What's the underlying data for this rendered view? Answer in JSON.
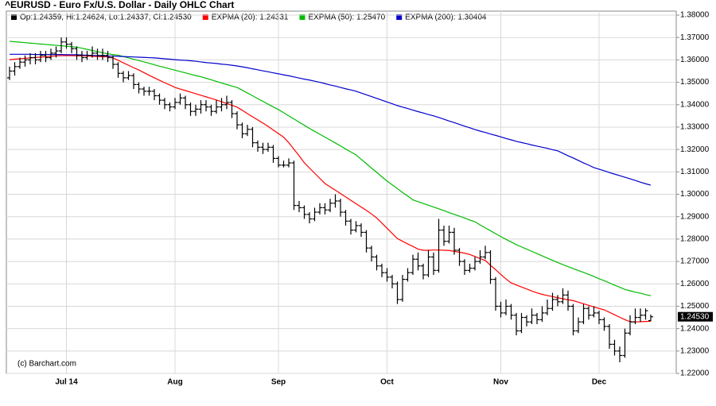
{
  "chart_data": {
    "type": "ohlc",
    "title": "^EURUSD - Euro Fx/U.S. Dollar - Daily OHLC Chart",
    "ohlc_legend": "Op:1.24359, Hi:1.24624, Lo:1.24337, Cl:1.24530",
    "ohlc_color": "#000000",
    "last_value_label": "1.24530",
    "credit": "(c) Barchart.com",
    "ylim": [
      1.22,
      1.38
    ],
    "yticks": [
      {
        "value": 1.22,
        "label": "1.22000"
      },
      {
        "value": 1.23,
        "label": "1.23000"
      },
      {
        "value": 1.24,
        "label": "1.24000"
      },
      {
        "value": 1.25,
        "label": "1.25000"
      },
      {
        "value": 1.26,
        "label": "1.26000"
      },
      {
        "value": 1.27,
        "label": "1.27000"
      },
      {
        "value": 1.28,
        "label": "1.28000"
      },
      {
        "value": 1.29,
        "label": "1.29000"
      },
      {
        "value": 1.3,
        "label": "1.30000"
      },
      {
        "value": 1.31,
        "label": "1.31000"
      },
      {
        "value": 1.32,
        "label": "1.32000"
      },
      {
        "value": 1.33,
        "label": "1.33000"
      },
      {
        "value": 1.34,
        "label": "1.34000"
      },
      {
        "value": 1.35,
        "label": "1.35000"
      },
      {
        "value": 1.36,
        "label": "1.36000"
      },
      {
        "value": 1.37,
        "label": "1.37000"
      },
      {
        "value": 1.38,
        "label": "1.38000"
      }
    ],
    "grid": true,
    "categories": [
      null,
      null,
      null,
      null,
      null,
      null,
      null,
      null,
      null,
      null,
      null,
      "Jul 14",
      null,
      null,
      null,
      null,
      null,
      null,
      null,
      null,
      null,
      null,
      null,
      null,
      null,
      null,
      null,
      null,
      null,
      null,
      null,
      null,
      "Aug",
      null,
      null,
      null,
      null,
      null,
      null,
      null,
      null,
      null,
      null,
      null,
      null,
      null,
      null,
      null,
      null,
      null,
      null,
      null,
      "Sep",
      null,
      null,
      null,
      null,
      null,
      null,
      null,
      null,
      null,
      null,
      null,
      null,
      null,
      null,
      null,
      null,
      null,
      null,
      null,
      null,
      "Oct",
      null,
      null,
      null,
      null,
      null,
      null,
      null,
      null,
      null,
      null,
      null,
      null,
      null,
      null,
      null,
      null,
      null,
      null,
      null,
      null,
      null,
      "Nov",
      null,
      null,
      null,
      null,
      null,
      null,
      null,
      null,
      null,
      null,
      null,
      null,
      null,
      null,
      null,
      null,
      null,
      null,
      "Dec",
      null,
      null,
      null,
      null,
      null,
      null,
      null,
      null,
      null,
      null
    ],
    "ohlc": [
      [
        1.352,
        1.357,
        1.351,
        1.355
      ],
      [
        1.355,
        1.359,
        1.353,
        1.357
      ],
      [
        1.357,
        1.361,
        1.356,
        1.359
      ],
      [
        1.359,
        1.362,
        1.357,
        1.36
      ],
      [
        1.36,
        1.363,
        1.358,
        1.361
      ],
      [
        1.361,
        1.363,
        1.358,
        1.36
      ],
      [
        1.36,
        1.364,
        1.359,
        1.362
      ],
      [
        1.362,
        1.364,
        1.359,
        1.361
      ],
      [
        1.361,
        1.365,
        1.36,
        1.363
      ],
      [
        1.363,
        1.366,
        1.361,
        1.364
      ],
      [
        1.364,
        1.37,
        1.363,
        1.368
      ],
      [
        1.368,
        1.37,
        1.365,
        1.367
      ],
      [
        1.367,
        1.368,
        1.363,
        1.365
      ],
      [
        1.365,
        1.366,
        1.36,
        1.362
      ],
      [
        1.362,
        1.364,
        1.359,
        1.361
      ],
      [
        1.361,
        1.364,
        1.36,
        1.362
      ],
      [
        1.362,
        1.366,
        1.361,
        1.363
      ],
      [
        1.363,
        1.365,
        1.36,
        1.362
      ],
      [
        1.362,
        1.365,
        1.36,
        1.362
      ],
      [
        1.362,
        1.364,
        1.359,
        1.361
      ],
      [
        1.361,
        1.362,
        1.356,
        1.358
      ],
      [
        1.358,
        1.359,
        1.352,
        1.354
      ],
      [
        1.354,
        1.355,
        1.35,
        1.352
      ],
      [
        1.352,
        1.355,
        1.351,
        1.353
      ],
      [
        1.353,
        1.354,
        1.347,
        1.349
      ],
      [
        1.349,
        1.35,
        1.345,
        1.347
      ],
      [
        1.347,
        1.348,
        1.344,
        1.346
      ],
      [
        1.346,
        1.348,
        1.344,
        1.346
      ],
      [
        1.346,
        1.347,
        1.342,
        1.344
      ],
      [
        1.344,
        1.345,
        1.34,
        1.342
      ],
      [
        1.342,
        1.343,
        1.338,
        1.34
      ],
      [
        1.34,
        1.341,
        1.337,
        1.339
      ],
      [
        1.339,
        1.343,
        1.338,
        1.341
      ],
      [
        1.341,
        1.345,
        1.34,
        1.343
      ],
      [
        1.343,
        1.344,
        1.338,
        1.34
      ],
      [
        1.34,
        1.341,
        1.335,
        1.337
      ],
      [
        1.337,
        1.34,
        1.335,
        1.338
      ],
      [
        1.338,
        1.342,
        1.336,
        1.34
      ],
      [
        1.34,
        1.342,
        1.337,
        1.339
      ],
      [
        1.339,
        1.34,
        1.335,
        1.337
      ],
      [
        1.337,
        1.342,
        1.336,
        1.339
      ],
      [
        1.339,
        1.343,
        1.337,
        1.34
      ],
      [
        1.34,
        1.344,
        1.338,
        1.341
      ],
      [
        1.341,
        1.342,
        1.334,
        1.336
      ],
      [
        1.336,
        1.337,
        1.329,
        1.331
      ],
      [
        1.331,
        1.332,
        1.325,
        1.327
      ],
      [
        1.327,
        1.331,
        1.326,
        1.329
      ],
      [
        1.329,
        1.33,
        1.321,
        1.323
      ],
      [
        1.323,
        1.324,
        1.319,
        1.321
      ],
      [
        1.321,
        1.323,
        1.318,
        1.32
      ],
      [
        1.32,
        1.323,
        1.319,
        1.321
      ],
      [
        1.321,
        1.322,
        1.314,
        1.316
      ],
      [
        1.316,
        1.317,
        1.312,
        1.313
      ],
      [
        1.313,
        1.315,
        1.312,
        1.313
      ],
      [
        1.313,
        1.316,
        1.312,
        1.314
      ],
      [
        1.314,
        1.315,
        1.293,
        1.295
      ],
      [
        1.295,
        1.297,
        1.292,
        1.294
      ],
      [
        1.294,
        1.295,
        1.289,
        1.291
      ],
      [
        1.291,
        1.292,
        1.287,
        1.289
      ],
      [
        1.289,
        1.294,
        1.288,
        1.292
      ],
      [
        1.292,
        1.296,
        1.291,
        1.294
      ],
      [
        1.294,
        1.296,
        1.291,
        1.293
      ],
      [
        1.293,
        1.298,
        1.292,
        1.296
      ],
      [
        1.296,
        1.3,
        1.294,
        1.297
      ],
      [
        1.297,
        1.298,
        1.29,
        1.292
      ],
      [
        1.292,
        1.293,
        1.286,
        1.288
      ],
      [
        1.288,
        1.289,
        1.282,
        1.284
      ],
      [
        1.284,
        1.288,
        1.283,
        1.286
      ],
      [
        1.286,
        1.287,
        1.281,
        1.283
      ],
      [
        1.283,
        1.284,
        1.274,
        1.276
      ],
      [
        1.276,
        1.277,
        1.27,
        1.272
      ],
      [
        1.272,
        1.273,
        1.266,
        1.268
      ],
      [
        1.268,
        1.269,
        1.263,
        1.265
      ],
      [
        1.265,
        1.267,
        1.261,
        1.263
      ],
      [
        1.263,
        1.264,
        1.258,
        1.26
      ],
      [
        1.26,
        1.261,
        1.251,
        1.253
      ],
      [
        1.253,
        1.264,
        1.252,
        1.262
      ],
      [
        1.262,
        1.267,
        1.261,
        1.265
      ],
      [
        1.265,
        1.273,
        1.264,
        1.271
      ],
      [
        1.271,
        1.274,
        1.266,
        1.268
      ],
      [
        1.268,
        1.269,
        1.262,
        1.264
      ],
      [
        1.264,
        1.275,
        1.263,
        1.272
      ],
      [
        1.272,
        1.274,
        1.264,
        1.266
      ],
      [
        1.266,
        1.289,
        1.265,
        1.284
      ],
      [
        1.284,
        1.286,
        1.277,
        1.279
      ],
      [
        1.279,
        1.286,
        1.278,
        1.283
      ],
      [
        1.283,
        1.285,
        1.273,
        1.275
      ],
      [
        1.275,
        1.276,
        1.268,
        1.27
      ],
      [
        1.27,
        1.271,
        1.264,
        1.266
      ],
      [
        1.266,
        1.269,
        1.265,
        1.267
      ],
      [
        1.267,
        1.272,
        1.266,
        1.27
      ],
      [
        1.27,
        1.275,
        1.269,
        1.272
      ],
      [
        1.272,
        1.277,
        1.271,
        1.274
      ],
      [
        1.274,
        1.275,
        1.26,
        1.262
      ],
      [
        1.262,
        1.263,
        1.248,
        1.25
      ],
      [
        1.25,
        1.252,
        1.245,
        1.247
      ],
      [
        1.247,
        1.253,
        1.246,
        1.25
      ],
      [
        1.25,
        1.251,
        1.244,
        1.246
      ],
      [
        1.246,
        1.247,
        1.237,
        1.239
      ],
      [
        1.239,
        1.247,
        1.238,
        1.245
      ],
      [
        1.245,
        1.246,
        1.241,
        1.243
      ],
      [
        1.243,
        1.249,
        1.242,
        1.246
      ],
      [
        1.246,
        1.247,
        1.242,
        1.244
      ],
      [
        1.244,
        1.25,
        1.243,
        1.247
      ],
      [
        1.247,
        1.253,
        1.246,
        1.249
      ],
      [
        1.249,
        1.256,
        1.248,
        1.253
      ],
      [
        1.253,
        1.255,
        1.25,
        1.252
      ],
      [
        1.252,
        1.258,
        1.251,
        1.255
      ],
      [
        1.255,
        1.257,
        1.248,
        1.25
      ],
      [
        1.25,
        1.251,
        1.237,
        1.239
      ],
      [
        1.239,
        1.245,
        1.238,
        1.243
      ],
      [
        1.243,
        1.251,
        1.242,
        1.249
      ],
      [
        1.249,
        1.25,
        1.244,
        1.246
      ],
      [
        1.246,
        1.25,
        1.245,
        1.247
      ],
      [
        1.247,
        1.248,
        1.242,
        1.244
      ],
      [
        1.244,
        1.245,
        1.239,
        1.241
      ],
      [
        1.241,
        1.242,
        1.231,
        1.233
      ],
      [
        1.233,
        1.235,
        1.228,
        1.23
      ],
      [
        1.23,
        1.232,
        1.225,
        1.228
      ],
      [
        1.228,
        1.24,
        1.227,
        1.238
      ],
      [
        1.238,
        1.246,
        1.237,
        1.243
      ],
      [
        1.243,
        1.249,
        1.242,
        1.245
      ],
      [
        1.245,
        1.249,
        1.243,
        1.246
      ],
      [
        1.246,
        1.249,
        1.244,
        1.248
      ],
      [
        1.24359,
        1.24624,
        1.24337,
        1.2453
      ]
    ],
    "series": [
      {
        "name": "EXPMA (20): 1.24331",
        "color": "#ff0000",
        "values": [
          1.3601,
          1.3603,
          1.3605,
          1.3607,
          1.3609,
          1.3611,
          1.3612,
          1.3614,
          1.3616,
          1.3618,
          1.3619,
          1.3619,
          1.3619,
          1.3618,
          1.3618,
          1.3617,
          1.3616,
          1.3615,
          1.3614,
          1.3613,
          1.3609,
          1.3598,
          1.3587,
          1.3576,
          1.3565,
          1.3555,
          1.3543,
          1.3531,
          1.352,
          1.3509,
          1.3498,
          1.3488,
          1.3477,
          1.347,
          1.3463,
          1.3456,
          1.3449,
          1.3442,
          1.3435,
          1.3428,
          1.3421,
          1.3413,
          1.3405,
          1.3397,
          1.3389,
          1.3375,
          1.336,
          1.3346,
          1.3332,
          1.3318,
          1.3303,
          1.3287,
          1.3271,
          1.3255,
          1.323,
          1.3201,
          1.3172,
          1.3141,
          1.3117,
          1.3094,
          1.3071,
          1.3048,
          1.3033,
          1.3018,
          1.3003,
          1.2988,
          1.2973,
          1.2958,
          1.2943,
          1.2928,
          1.2912,
          1.2894,
          1.2871,
          1.2848,
          1.2825,
          1.2802,
          1.279,
          1.2778,
          1.2767,
          1.2755,
          1.275,
          1.275,
          1.2751,
          1.2751,
          1.275,
          1.2749,
          1.2745,
          1.2741,
          1.2737,
          1.2731,
          1.2722,
          1.2713,
          1.2704,
          1.2683,
          1.2663,
          1.2642,
          1.2622,
          1.2604,
          1.2595,
          1.2586,
          1.2577,
          1.2568,
          1.256,
          1.2553,
          1.2548,
          1.2543,
          1.2538,
          1.2533,
          1.2529,
          1.2525,
          1.2518,
          1.2511,
          1.2504,
          1.2497,
          1.249,
          1.2484,
          1.2473,
          1.2462,
          1.2451,
          1.244,
          1.2431,
          1.243,
          1.2431,
          1.2432,
          1.24331
        ]
      },
      {
        "name": "EXPMA (50): 1.25470",
        "color": "#00bb00",
        "values": [
          1.3683,
          1.3681,
          1.3679,
          1.3677,
          1.3675,
          1.3673,
          1.3671,
          1.3669,
          1.3667,
          1.3665,
          1.3663,
          1.3661,
          1.3659,
          1.3657,
          1.3652,
          1.3647,
          1.3642,
          1.3637,
          1.3632,
          1.3627,
          1.3624,
          1.3621,
          1.3615,
          1.3609,
          1.3603,
          1.3597,
          1.3591,
          1.3585,
          1.3578,
          1.3572,
          1.3566,
          1.356,
          1.3554,
          1.3548,
          1.3542,
          1.3536,
          1.353,
          1.3525,
          1.3518,
          1.3511,
          1.3504,
          1.3497,
          1.349,
          1.3483,
          1.3477,
          1.3465,
          1.3452,
          1.344,
          1.3427,
          1.3415,
          1.3402,
          1.339,
          1.3378,
          1.3364,
          1.335,
          1.3336,
          1.3322,
          1.3308,
          1.3294,
          1.3281,
          1.3268,
          1.3255,
          1.3242,
          1.3229,
          1.3216,
          1.3202,
          1.3189,
          1.3176,
          1.3156,
          1.3137,
          1.3117,
          1.3098,
          1.3078,
          1.3059,
          1.3042,
          1.3025,
          1.3008,
          1.2992,
          1.2975,
          1.2967,
          1.2959,
          1.2951,
          1.2943,
          1.2935,
          1.2927,
          1.2918,
          1.291,
          1.2902,
          1.2894,
          1.2885,
          1.2877,
          1.2863,
          1.285,
          1.2837,
          1.2824,
          1.2811,
          1.2799,
          1.2787,
          1.2775,
          1.2765,
          1.2755,
          1.2745,
          1.2735,
          1.2725,
          1.2715,
          1.2705,
          1.2695,
          1.2686,
          1.2677,
          1.2668,
          1.2659,
          1.2651,
          1.2642,
          1.2633,
          1.2623,
          1.2614,
          1.2604,
          1.2594,
          1.2585,
          1.2575,
          1.2569,
          1.2563,
          1.2558,
          1.2552,
          1.2547
        ]
      },
      {
        "name": "EXPMA (200): 1.30404",
        "color": "#0000cc",
        "values": [
          1.3625,
          1.3625,
          1.3625,
          1.3625,
          1.3625,
          1.3624,
          1.3624,
          1.3624,
          1.3624,
          1.3624,
          1.3624,
          1.3623,
          1.3623,
          1.3623,
          1.3622,
          1.3621,
          1.362,
          1.3619,
          1.3618,
          1.3617,
          1.3617,
          1.3616,
          1.3615,
          1.3614,
          1.3613,
          1.3612,
          1.3611,
          1.361,
          1.3609,
          1.3607,
          1.3605,
          1.3603,
          1.3601,
          1.3599,
          1.3598,
          1.3596,
          1.3594,
          1.3591,
          1.3588,
          1.3586,
          1.3584,
          1.3581,
          1.3579,
          1.3576,
          1.3573,
          1.3569,
          1.3565,
          1.356,
          1.3556,
          1.3551,
          1.3547,
          1.3542,
          1.3538,
          1.3533,
          1.3529,
          1.3524,
          1.3519,
          1.3514,
          1.351,
          1.3505,
          1.35,
          1.3494,
          1.3488,
          1.3483,
          1.3477,
          1.3471,
          1.3466,
          1.346,
          1.3452,
          1.3444,
          1.3436,
          1.3428,
          1.342,
          1.3412,
          1.3404,
          1.3396,
          1.3389,
          1.3383,
          1.3376,
          1.3369,
          1.3363,
          1.3356,
          1.335,
          1.3343,
          1.3335,
          1.3327,
          1.332,
          1.3312,
          1.3304,
          1.3297,
          1.3289,
          1.3282,
          1.3276,
          1.3269,
          1.3263,
          1.3256,
          1.3249,
          1.3243,
          1.3236,
          1.3231,
          1.3226,
          1.322,
          1.3215,
          1.321,
          1.3205,
          1.3199,
          1.3194,
          1.3183,
          1.3172,
          1.3162,
          1.3151,
          1.314,
          1.313,
          1.3119,
          1.3112,
          1.3105,
          1.3097,
          1.309,
          1.3083,
          1.3076,
          1.3069,
          1.3062,
          1.3054,
          1.3047,
          1.30404
        ]
      }
    ]
  }
}
